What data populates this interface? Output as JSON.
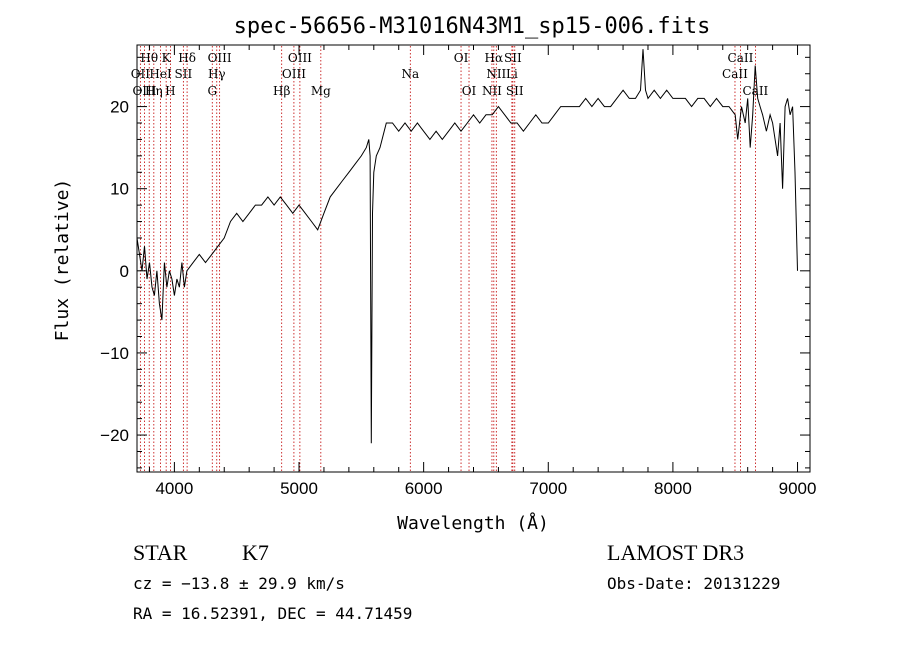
{
  "chart_data": {
    "type": "line",
    "title": "spec-56656-M31016N43M1_sp15-006.fits",
    "xlabel": "Wavelength (Å)",
    "ylabel": "Flux (relative)",
    "xlim": [
      3700,
      9100
    ],
    "ylim": [
      -24.5,
      27.5
    ],
    "xticks": [
      4000,
      5000,
      6000,
      7000,
      8000,
      9000
    ],
    "yticks": [
      -20,
      -10,
      0,
      10,
      20
    ],
    "ytick_labels": [
      "−20",
      "−10",
      "0",
      "10",
      "20"
    ],
    "grid": false,
    "series": [
      {
        "values_note": "",
        "x": [
          3700,
          3720,
          3740,
          3760,
          3780,
          3800,
          3820,
          3840,
          3860,
          3880,
          3900,
          3920,
          3940,
          3960,
          3980,
          4000,
          4020,
          4040,
          4060,
          4080,
          4100,
          4150,
          4200,
          4250,
          4300,
          4350,
          4400,
          4450,
          4500,
          4550,
          4600,
          4650,
          4700,
          4750,
          4800,
          4850,
          4900,
          4950,
          5000,
          5050,
          5100,
          5150,
          5200,
          5250,
          5300,
          5350,
          5400,
          5450,
          5500,
          5540,
          5560,
          5570,
          5580,
          5590,
          5600,
          5620,
          5650,
          5700,
          5750,
          5800,
          5850,
          5900,
          5950,
          6000,
          6050,
          6100,
          6150,
          6200,
          6250,
          6300,
          6350,
          6400,
          6450,
          6500,
          6550,
          6600,
          6650,
          6700,
          6750,
          6800,
          6850,
          6900,
          6950,
          7000,
          7050,
          7100,
          7150,
          7200,
          7250,
          7300,
          7350,
          7400,
          7450,
          7500,
          7550,
          7600,
          7650,
          7700,
          7740,
          7760,
          7780,
          7800,
          7850,
          7900,
          7950,
          8000,
          8050,
          8100,
          8150,
          8200,
          8250,
          8300,
          8350,
          8400,
          8450,
          8500,
          8520,
          8550,
          8580,
          8600,
          8620,
          8640,
          8660,
          8680,
          8700,
          8720,
          8750,
          8780,
          8800,
          8820,
          8840,
          8860,
          8880,
          8900,
          8920,
          8940,
          8960,
          8980,
          9000
        ],
        "y": [
          4,
          2,
          0,
          3,
          -1,
          1,
          -2,
          -3,
          0,
          -4,
          -6,
          1,
          -2,
          0,
          -1,
          -3,
          -1,
          -2,
          1,
          -2,
          0,
          1,
          2,
          1,
          2,
          3,
          4,
          6,
          7,
          6,
          7,
          8,
          8,
          9,
          8,
          9,
          8,
          7,
          8,
          7,
          6,
          5,
          7,
          9,
          10,
          11,
          12,
          13,
          14,
          15,
          16,
          14,
          -21,
          7,
          12,
          14,
          15,
          18,
          18,
          17,
          18,
          17,
          18,
          17,
          16,
          17,
          16,
          17,
          18,
          17,
          18,
          19,
          18,
          19,
          19,
          20,
          19,
          18,
          18,
          17,
          18,
          19,
          18,
          18,
          19,
          20,
          20,
          20,
          20,
          21,
          20,
          21,
          20,
          20,
          21,
          22,
          21,
          21,
          22,
          27,
          22,
          21,
          22,
          21,
          22,
          21,
          21,
          21,
          20,
          21,
          21,
          20,
          21,
          20,
          20,
          19,
          16,
          20,
          18,
          21,
          15,
          19,
          25,
          21,
          20,
          19,
          17,
          19,
          18,
          16,
          14,
          18,
          10,
          20,
          21,
          19,
          20,
          12,
          0
        ]
      }
    ],
    "spectral_lines": [
      {
        "label": "Hθ",
        "x": 3798,
        "row": 0
      },
      {
        "label": "K",
        "x": 3934,
        "row": 0
      },
      {
        "label": "Hδ",
        "x": 4102,
        "row": 0
      },
      {
        "label": "OIII",
        "x": 4363,
        "row": 0
      },
      {
        "label": "OIII",
        "x": 5007,
        "row": 0
      },
      {
        "label": "OI",
        "x": 6300,
        "row": 0
      },
      {
        "label": "Hα",
        "x": 6563,
        "row": 0
      },
      {
        "label": "SII",
        "x": 6716,
        "row": 0
      },
      {
        "label": "CaII",
        "x": 8542,
        "row": 0
      },
      {
        "label": "OII",
        "x": 3727,
        "row": 1
      },
      {
        "label": "HeI",
        "x": 3889,
        "row": 1
      },
      {
        "label": "SII",
        "x": 4072,
        "row": 1
      },
      {
        "label": "Hγ",
        "x": 4340,
        "row": 1
      },
      {
        "label": "OIII",
        "x": 4959,
        "row": 1
      },
      {
        "label": "Na",
        "x": 5893,
        "row": 1
      },
      {
        "label": "NII",
        "x": 6583,
        "row": 1
      },
      {
        "label": "Li",
        "x": 6708,
        "row": 1
      },
      {
        "label": "CaII",
        "x": 8498,
        "row": 1
      },
      {
        "label": "OIII",
        "x": 3760,
        "row": 2
      },
      {
        "label": "Hη",
        "x": 3835,
        "row": 2
      },
      {
        "label": "H",
        "x": 3968,
        "row": 2
      },
      {
        "label": "G",
        "x": 4304,
        "row": 2
      },
      {
        "label": "Hβ",
        "x": 4861,
        "row": 2
      },
      {
        "label": "Mg",
        "x": 5175,
        "row": 2
      },
      {
        "label": "OI",
        "x": 6364,
        "row": 2
      },
      {
        "label": "NII",
        "x": 6548,
        "row": 2
      },
      {
        "label": "SII",
        "x": 6731,
        "row": 2
      },
      {
        "label": "CaII",
        "x": 8662,
        "row": 2
      }
    ],
    "line_color": "#000000",
    "marker_color": "#c00000"
  },
  "info": {
    "class": "STAR",
    "subclass": "K7",
    "survey": "LAMOST DR3",
    "cz": "cz = −13.8 ± 29.9 km/s",
    "obsdate": "Obs-Date: 20131229",
    "radec": "RA =  16.52391, DEC =  44.71459"
  }
}
